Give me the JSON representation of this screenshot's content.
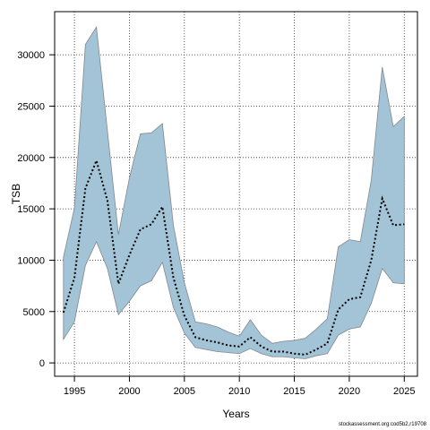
{
  "chart_data": {
    "type": "area",
    "xlabel": "Years",
    "ylabel": "TSB",
    "xlim": [
      1993.2,
      2026.2
    ],
    "ylim": [
      -1300,
      34200
    ],
    "x_ticks": [
      1995,
      2000,
      2005,
      2010,
      2015,
      2020,
      2025
    ],
    "y_ticks": [
      0,
      5000,
      10000,
      15000,
      20000,
      25000,
      30000
    ],
    "grid": true,
    "band_color": "#a3c4d6",
    "band_edge_color": "#808890",
    "line_color": "#000000",
    "x": [
      1994,
      1995,
      1996,
      1997,
      1998,
      1999,
      2000,
      2001,
      2002,
      2003,
      2004,
      2005,
      2006,
      2007,
      2008,
      2009,
      2010,
      2011,
      2012,
      2013,
      2014,
      2015,
      2016,
      2017,
      2018,
      2019,
      2020,
      2021,
      2022,
      2023,
      2024,
      2025
    ],
    "series": [
      {
        "values": [
          4900,
          8300,
          17000,
          19700,
          15800,
          7700,
          10500,
          13000,
          13500,
          15200,
          8300,
          4600,
          2500,
          2200,
          2000,
          1700,
          1600,
          2500,
          1600,
          1100,
          1100,
          900,
          800,
          1300,
          1900,
          5200,
          6200,
          6400,
          10000,
          16000,
          13400,
          13500
        ]
      }
    ],
    "upper": [
      10300,
      15100,
      31000,
      32700,
      22600,
      12500,
      18000,
      22300,
      22400,
      23300,
      13400,
      7800,
      4000,
      3800,
      3500,
      3000,
      2600,
      4200,
      2700,
      1900,
      2100,
      2200,
      2400,
      3300,
      4300,
      11300,
      12000,
      11800,
      17800,
      28800,
      23000,
      24000
    ],
    "lower": [
      2300,
      4000,
      9500,
      11800,
      9200,
      4700,
      6000,
      7500,
      8000,
      9800,
      5400,
      2900,
      1500,
      1300,
      1100,
      1000,
      900,
      1400,
      900,
      600,
      600,
      500,
      400,
      700,
      900,
      2700,
      3300,
      3500,
      5800,
      9200,
      7800,
      7700
    ]
  },
  "credit": "stockassessment.org:cod5b2,r19708"
}
